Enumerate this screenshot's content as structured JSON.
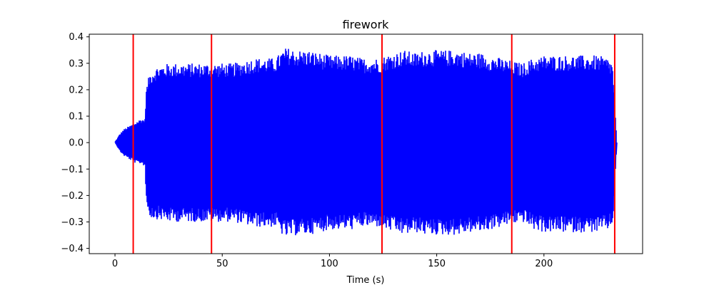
{
  "chart_data": {
    "type": "line",
    "title": "firework",
    "xlabel": "Time (s)",
    "ylabel": "",
    "xlim": [
      -12,
      246
    ],
    "ylim": [
      -0.42,
      0.41
    ],
    "x_ticks": [
      0,
      50,
      100,
      150,
      200
    ],
    "y_ticks": [
      -0.4,
      -0.3,
      -0.2,
      -0.1,
      0.0,
      0.1,
      0.2,
      0.3,
      0.4
    ],
    "x_tick_labels": [
      "0",
      "50",
      "100",
      "150",
      "200"
    ],
    "y_tick_labels": [
      "−0.4",
      "−0.3",
      "−0.2",
      "−0.1",
      "0.0",
      "0.1",
      "0.2",
      "0.3",
      "0.4"
    ],
    "grid": false,
    "series": [
      {
        "color": "#0000ff",
        "envelope": {
          "time_s": [
            0,
            2,
            4,
            6,
            8,
            10,
            12,
            14,
            14.5,
            16,
            18,
            20,
            25,
            30,
            35,
            40,
            45,
            50,
            55,
            60,
            65,
            70,
            75,
            78,
            80,
            85,
            90,
            95,
            100,
            105,
            110,
            115,
            120,
            124,
            126,
            130,
            135,
            140,
            145,
            150,
            155,
            160,
            165,
            170,
            175,
            180,
            185,
            190,
            195,
            200,
            205,
            210,
            215,
            220,
            225,
            230,
            232,
            234
          ],
          "upper": [
            0.0,
            0.03,
            0.05,
            0.06,
            0.07,
            0.08,
            0.09,
            0.09,
            0.2,
            0.26,
            0.28,
            0.29,
            0.3,
            0.3,
            0.3,
            0.3,
            0.3,
            0.3,
            0.3,
            0.31,
            0.32,
            0.32,
            0.32,
            0.35,
            0.36,
            0.35,
            0.35,
            0.34,
            0.33,
            0.33,
            0.33,
            0.32,
            0.32,
            0.32,
            0.33,
            0.34,
            0.35,
            0.34,
            0.35,
            0.35,
            0.35,
            0.35,
            0.34,
            0.34,
            0.33,
            0.32,
            0.31,
            0.3,
            0.32,
            0.33,
            0.33,
            0.33,
            0.33,
            0.33,
            0.33,
            0.32,
            0.3,
            0.0
          ],
          "lower": [
            0.0,
            -0.03,
            -0.05,
            -0.06,
            -0.07,
            -0.08,
            -0.08,
            -0.09,
            -0.22,
            -0.28,
            -0.29,
            -0.29,
            -0.3,
            -0.3,
            -0.3,
            -0.3,
            -0.3,
            -0.3,
            -0.3,
            -0.31,
            -0.32,
            -0.32,
            -0.32,
            -0.35,
            -0.36,
            -0.35,
            -0.35,
            -0.34,
            -0.33,
            -0.33,
            -0.33,
            -0.32,
            -0.32,
            -0.32,
            -0.33,
            -0.34,
            -0.35,
            -0.34,
            -0.35,
            -0.35,
            -0.35,
            -0.35,
            -0.34,
            -0.34,
            -0.33,
            -0.32,
            -0.31,
            -0.3,
            -0.33,
            -0.34,
            -0.34,
            -0.34,
            -0.34,
            -0.34,
            -0.34,
            -0.33,
            -0.32,
            0.0
          ]
        }
      }
    ],
    "markers": {
      "color": "#ff0000",
      "x": [
        8.5,
        45,
        124.5,
        185,
        233
      ]
    }
  }
}
